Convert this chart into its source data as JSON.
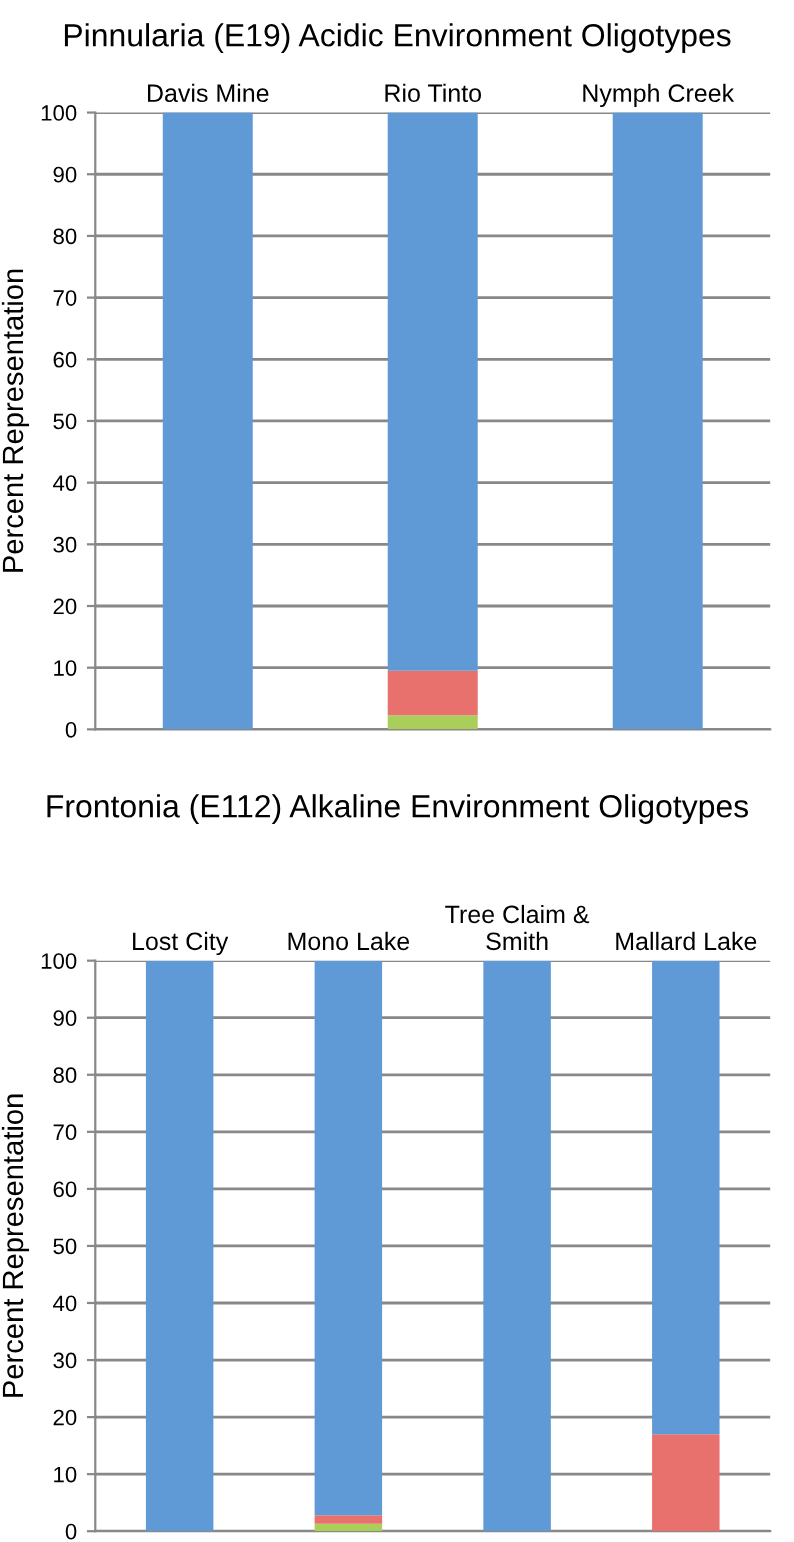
{
  "chart_data": [
    {
      "type": "bar",
      "stacked": true,
      "title": "Pinnularia (E19) Acidic Environment Oligotypes",
      "ylabel": "Percent Representation",
      "categories": [
        "Davis Mine",
        "Rio Tinto",
        "Nymph Creek"
      ],
      "series": [
        {
          "color": "#a9cf5a",
          "values": [
            0,
            2.3,
            0
          ]
        },
        {
          "color": "#e8716d",
          "values": [
            0,
            7.2,
            0
          ]
        },
        {
          "color": "#5f9ad6",
          "values": [
            100,
            90.5,
            100
          ]
        }
      ],
      "ylim": [
        0,
        100
      ],
      "yticks": [
        0,
        10,
        20,
        30,
        40,
        50,
        60,
        70,
        80,
        90,
        100
      ],
      "grid": "y"
    },
    {
      "type": "bar",
      "stacked": true,
      "title": "Frontonia (E112) Alkaline Environment Oligotypes",
      "ylabel": "Percent Representation",
      "categories": [
        "Lost City",
        "Mono Lake",
        "Tree Claim &\nSmith",
        "Mallard Lake"
      ],
      "series": [
        {
          "color": "#a9cf5a",
          "values": [
            0,
            1.3,
            0,
            0
          ]
        },
        {
          "color": "#e8716d",
          "values": [
            0,
            1.5,
            0,
            17
          ]
        },
        {
          "color": "#5f9ad6",
          "values": [
            100,
            97.2,
            100,
            83
          ]
        }
      ],
      "ylim": [
        0,
        100
      ],
      "yticks": [
        0,
        10,
        20,
        30,
        40,
        50,
        60,
        70,
        80,
        90,
        100
      ],
      "grid": "y"
    }
  ]
}
